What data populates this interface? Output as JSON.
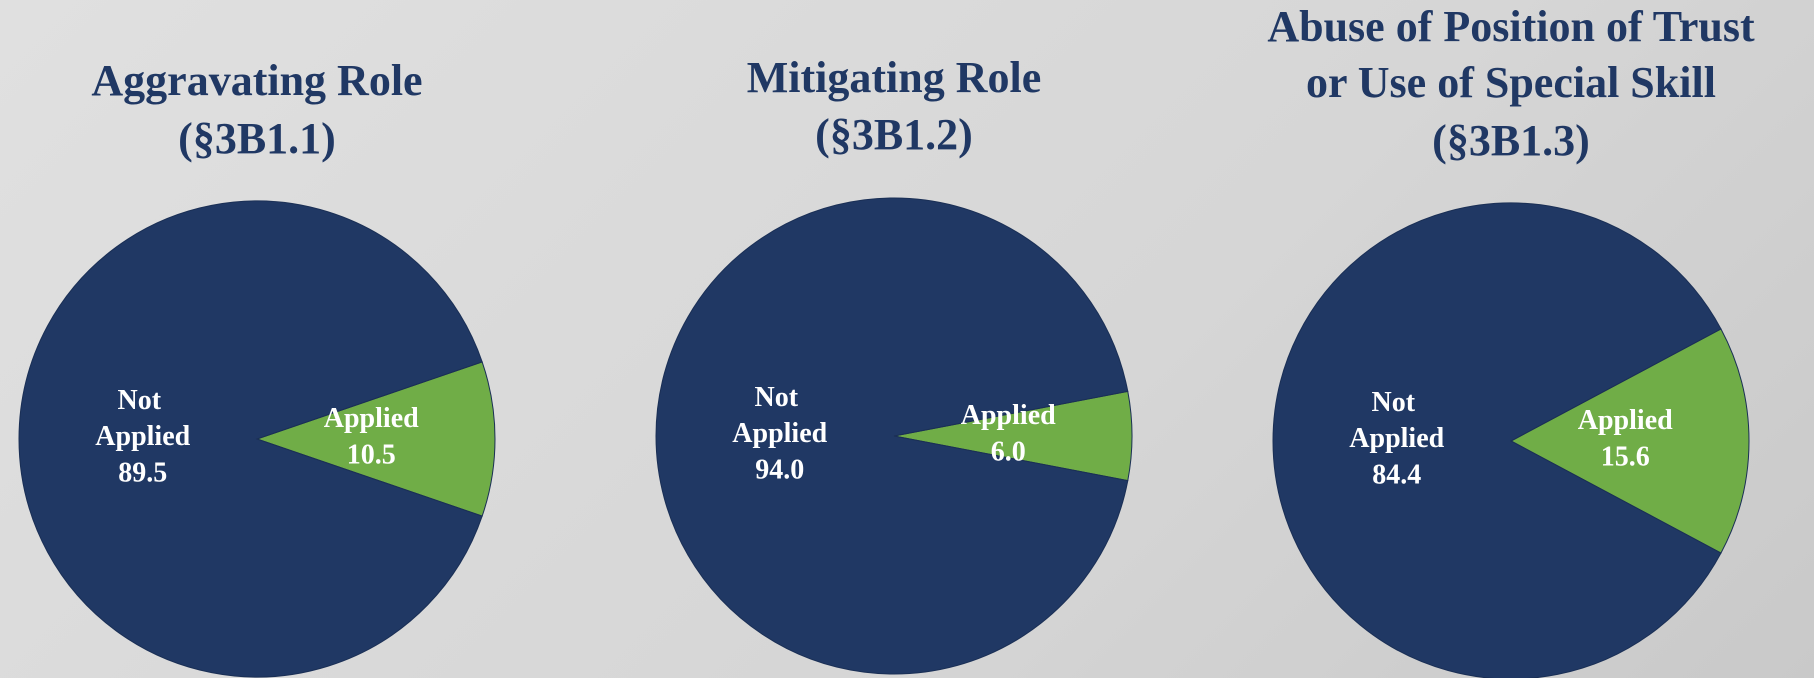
{
  "chart_data": [
    {
      "type": "pie",
      "title": [
        "Aggravating Role",
        "(§3B1.1)"
      ],
      "categories": [
        "Not Applied",
        "Applied"
      ],
      "values": [
        89.5,
        10.5
      ],
      "value_labels": [
        "89.5",
        "10.5"
      ],
      "colors": [
        "#203864",
        "#70ad47"
      ]
    },
    {
      "type": "pie",
      "title": [
        "Mitigating Role",
        "(§3B1.2)"
      ],
      "categories": [
        "Not Applied",
        "Applied"
      ],
      "values": [
        94.0,
        6.0
      ],
      "value_labels": [
        "94.0",
        "6.0"
      ],
      "colors": [
        "#203864",
        "#70ad47"
      ]
    },
    {
      "type": "pie",
      "title": [
        "Abuse of Position of Trust",
        "or Use of Special Skill",
        "(§3B1.3)"
      ],
      "categories": [
        "Not Applied",
        "Applied"
      ],
      "values": [
        84.4,
        15.6
      ],
      "value_labels": [
        "84.4",
        "15.6"
      ],
      "colors": [
        "#203864",
        "#70ad47"
      ]
    }
  ]
}
